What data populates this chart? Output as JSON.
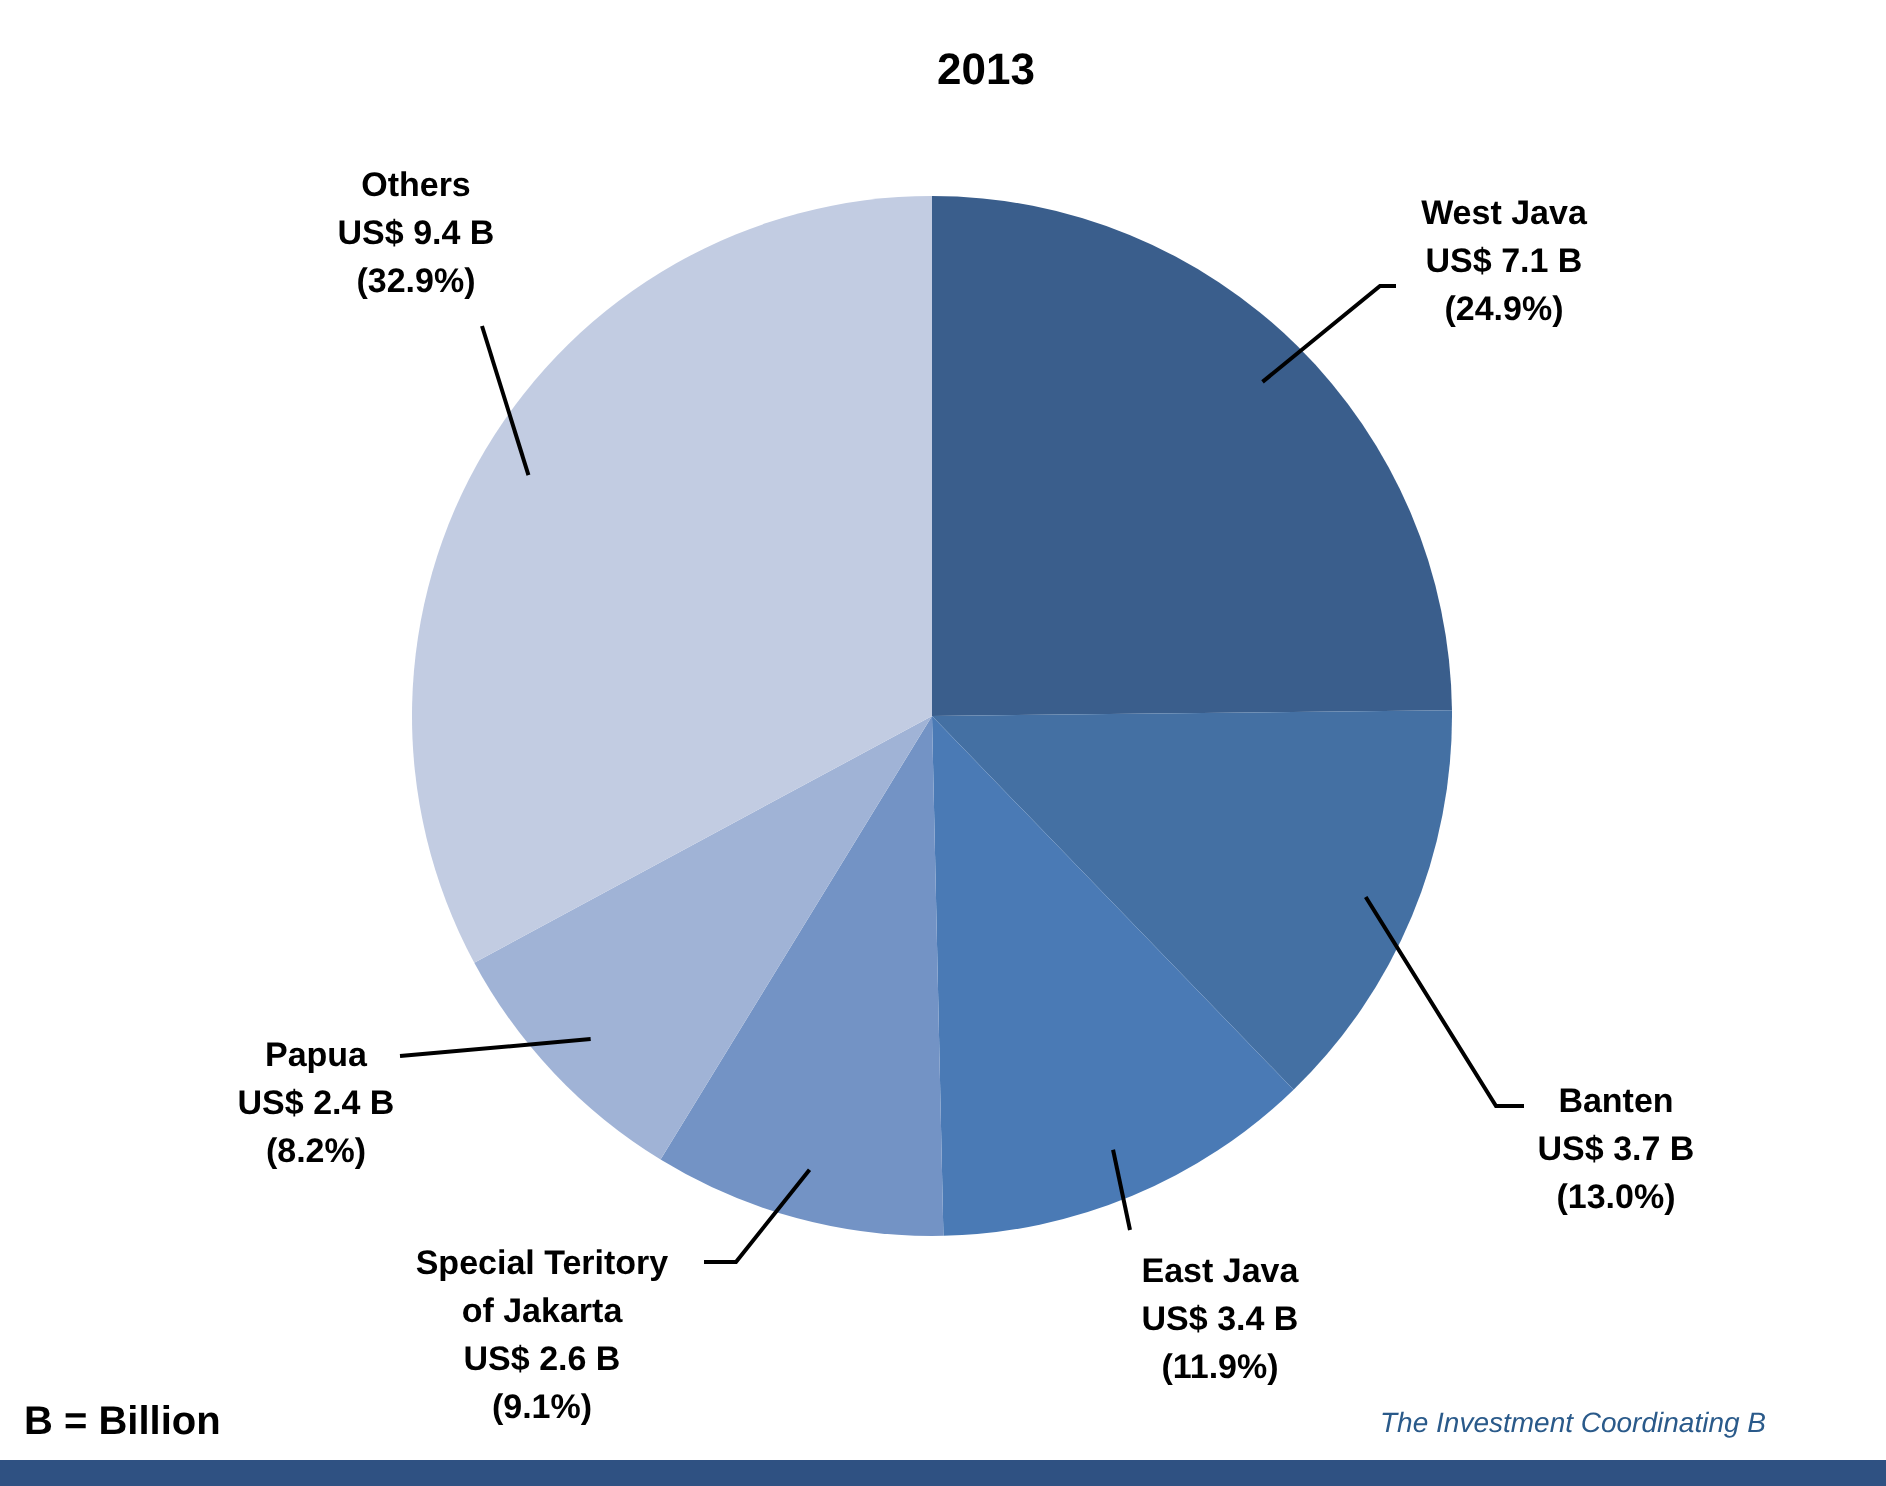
{
  "chart_data": {
    "type": "pie",
    "title": "2013",
    "categories": [
      "West Java",
      "Banten",
      "East Java",
      "Special Teritory\nof Jakarta",
      "Papua",
      "Others"
    ],
    "values": [
      7.1,
      3.7,
      3.4,
      2.6,
      2.4,
      9.4
    ],
    "colors": [
      "#3a5e8c",
      "#4470a3",
      "#4a7ab5",
      "#7393c5",
      "#a0b3d6",
      "#c2cce2"
    ],
    "value_labels": [
      "US$ 7.1 B\n(24.9%)",
      "US$ 3.7 B\n(13.0%)",
      "US$ 3.4 B\n(11.9%)",
      "US$ 2.6 B\n(9.1%)",
      "US$ 2.4 B\n(8.2%)",
      "US$ 9.4 B\n(32.9%)"
    ],
    "annotations": [
      "B = Billion",
      "The Investment Coordinating B"
    ]
  }
}
